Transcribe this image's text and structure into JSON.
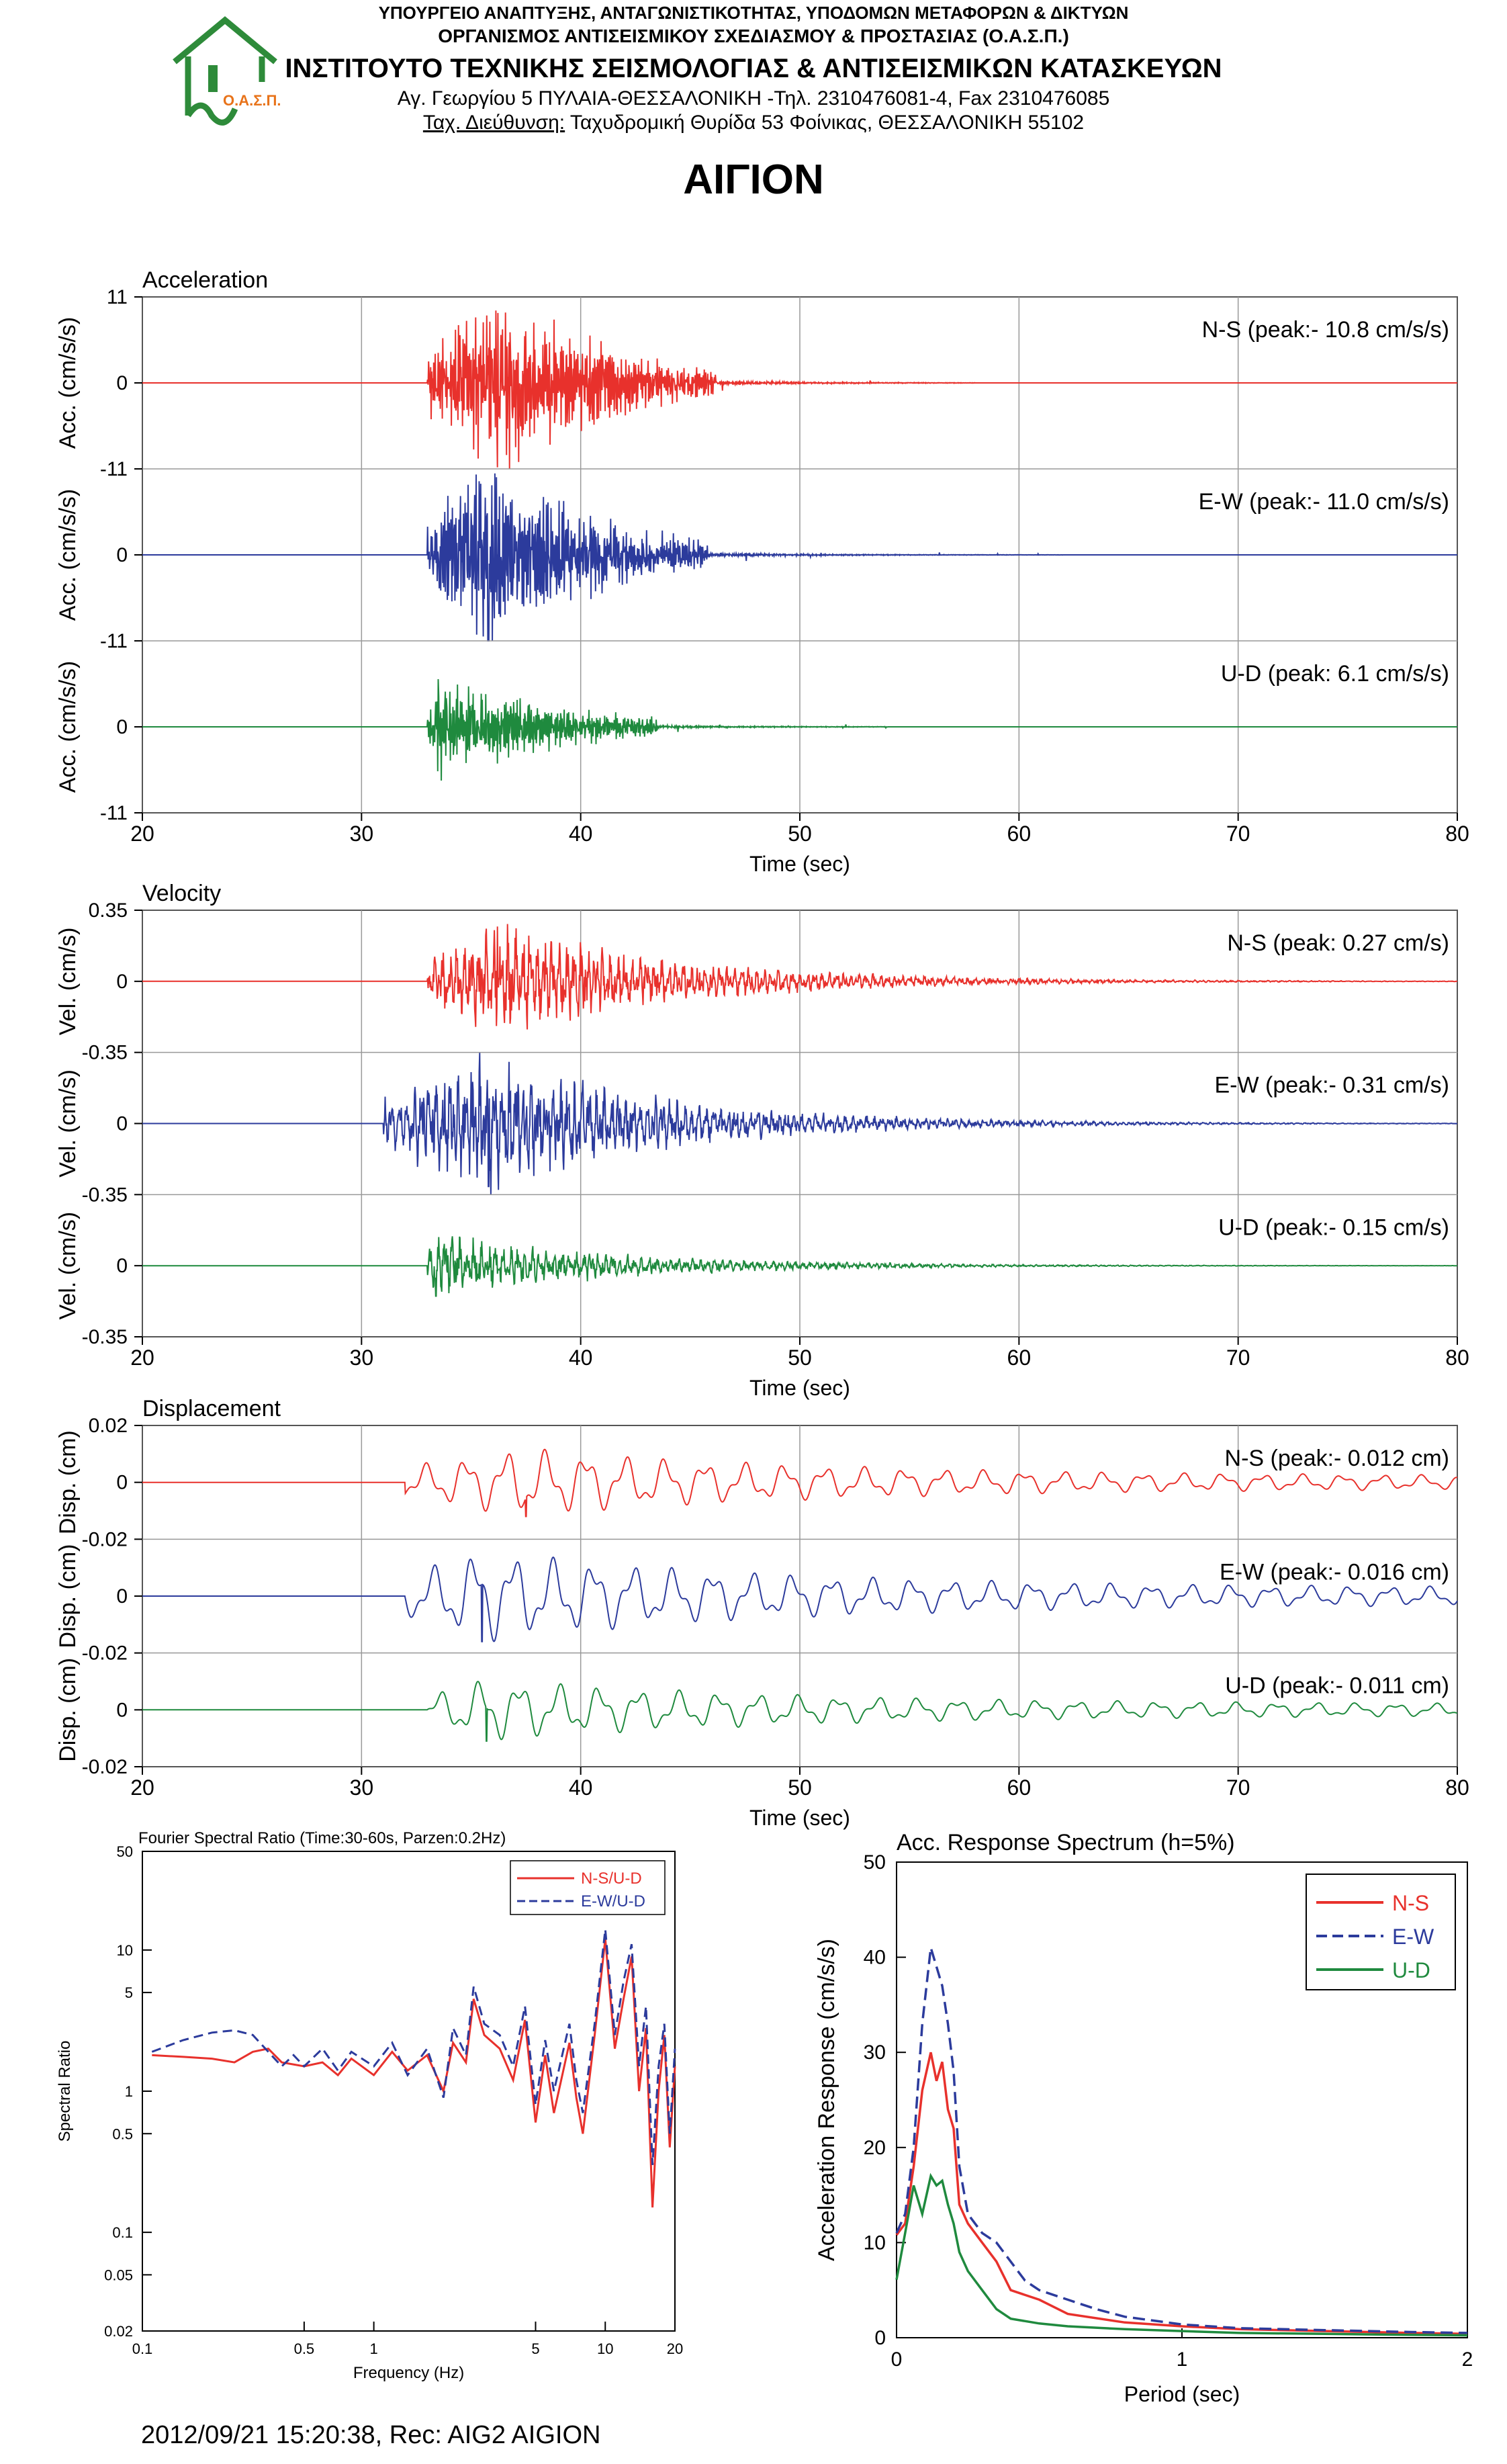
{
  "header": {
    "line1": "ΥΠΟΥΡΓΕΙΟ ΑΝΑΠΤΥΞΗΣ, ΑΝΤΑΓΩΝΙΣΤΙΚΟΤΗΤΑΣ, ΥΠΟΔΟΜΩΝ ΜΕΤΑΦΟΡΩΝ & ΔΙΚΤΥΩΝ",
    "line2": "ΟΡΓΑΝΙΣΜΟΣ ΑΝΤΙΣΕΙΣΜΙΚΟΥ ΣΧΕΔΙΑΣΜΟΥ & ΠΡΟΣΤΑΣΙΑΣ (Ο.Α.Σ.Π.)",
    "line3": "ΙΝΣΤΙΤΟΥΤΟ ΤΕΧΝΙΚΗΣ ΣΕΙΣΜΟΛΟΓΙΑΣ & ΑΝΤΙΣΕΙΣΜΙΚΩΝ ΚΑΤΑΣΚΕΥΩΝ",
    "line4": "Αγ. Γεωργίου 5 ΠΥΛΑΙΑ-ΘΕΣΣΑΛΟΝΙΚΗ -Τηλ. 2310476081-4,  Fax 2310476085",
    "line5_label": "Ταχ. Διεύθυνση:",
    "line5_rest": " Ταχυδρομική Θυρίδα 53 Φοίνικας, ΘΕΣΣΑΛΟΝΙΚΗ 55102",
    "logo_text": "Ο.Α.Σ.Π.",
    "logo_color": "#2e8b3a",
    "logo_text_color": "#e8731a"
  },
  "station_title": "ΑΙΓΙΟΝ",
  "footer": "2012/09/21 15:20:38, Rec: AIG2 AIGION",
  "colors": {
    "ns": "#e8312c",
    "ew": "#2c3b9c",
    "ud": "#1f8a3e"
  },
  "chart_data": [
    {
      "type": "line",
      "title": "Acceleration",
      "xlabel": "Time (sec)",
      "ylabel": "Acc. (cm/s/s)",
      "xlim": [
        20,
        80
      ],
      "x_ticks": [
        "20",
        "30",
        "40",
        "50",
        "60",
        "70",
        "80"
      ],
      "ylim": [
        -11,
        11
      ],
      "y_ticks": [
        "11",
        "0",
        "-11"
      ],
      "series": [
        {
          "name": "N-S",
          "label": "N-S (peak:- 10.8 cm/s/s)",
          "peak": -10.8,
          "onset": 33,
          "peak_time": 36.2,
          "decay": 5.5,
          "end": 58
        },
        {
          "name": "E-W",
          "label": "E-W (peak:- 11.0 cm/s/s)",
          "peak": -11.0,
          "onset": 33,
          "peak_time": 35.8,
          "decay": 5.5,
          "end": 62
        },
        {
          "name": "U-D",
          "label": "U-D (peak: 6.1 cm/s/s)",
          "peak": 6.1,
          "onset": 33,
          "peak_time": 33.5,
          "decay": 6,
          "end": 54
        }
      ]
    },
    {
      "type": "line",
      "title": "Velocity",
      "xlabel": "Time (sec)",
      "ylabel": "Vel. (cm/s)",
      "xlim": [
        20,
        80
      ],
      "x_ticks": [
        "20",
        "30",
        "40",
        "50",
        "60",
        "70",
        "80"
      ],
      "ylim": [
        -0.35,
        0.35
      ],
      "y_ticks": [
        "0.35",
        "0",
        "-0.35"
      ],
      "series": [
        {
          "name": "N-S",
          "label": "N-S (peak: 0.27 cm/s)",
          "peak": 0.27,
          "onset": 33,
          "peak_time": 36.2,
          "decay": 8,
          "end": 80
        },
        {
          "name": "E-W",
          "label": "E-W (peak:- 0.31 cm/s)",
          "peak": -0.31,
          "onset": 31,
          "peak_time": 35.8,
          "decay": 8,
          "end": 80
        },
        {
          "name": "U-D",
          "label": "U-D (peak:- 0.15 cm/s)",
          "peak": -0.15,
          "onset": 33,
          "peak_time": 33.4,
          "decay": 8,
          "end": 80
        }
      ]
    },
    {
      "type": "line",
      "title": "Displacement",
      "xlabel": "Time (sec)",
      "ylabel": "Disp. (cm)",
      "xlim": [
        20,
        80
      ],
      "x_ticks": [
        "20",
        "30",
        "40",
        "50",
        "60",
        "70",
        "80"
      ],
      "ylim": [
        -0.02,
        0.02
      ],
      "y_ticks": [
        "0.02",
        "0",
        "-0.02"
      ],
      "series": [
        {
          "name": "N-S",
          "label": "N-S (peak:- 0.012 cm)",
          "peak": -0.012,
          "onset": 32,
          "peak_time": 37.5,
          "decay": 14,
          "end": 80
        },
        {
          "name": "E-W",
          "label": "E-W (peak:- 0.016 cm)",
          "peak": -0.016,
          "onset": 32,
          "peak_time": 35.5,
          "decay": 14,
          "end": 80
        },
        {
          "name": "U-D",
          "label": "U-D (peak:- 0.011 cm)",
          "peak": -0.011,
          "onset": 33,
          "peak_time": 35.7,
          "decay": 14,
          "end": 80
        }
      ]
    },
    {
      "type": "line",
      "title": "Fourier Spectral Ratio (Time:30-60s, Parzen:0.2Hz)",
      "xlabel": "Frequency (Hz)",
      "ylabel": "Spectral Ratio",
      "x_scale": "log",
      "y_scale": "log",
      "xlim": [
        0.1,
        20
      ],
      "ylim": [
        0.02,
        50
      ],
      "x_ticks": [
        {
          "v": 0.1,
          "t": "0.1"
        },
        {
          "v": 0.5,
          "t": "0.5"
        },
        {
          "v": 1,
          "t": "1"
        },
        {
          "v": 5,
          "t": "5"
        },
        {
          "v": 10,
          "t": "10"
        },
        {
          "v": 20,
          "t": "20"
        }
      ],
      "y_ticks": [
        {
          "v": 50,
          "t": "50"
        },
        {
          "v": 10,
          "t": "10"
        },
        {
          "v": 5,
          "t": "5"
        },
        {
          "v": 1,
          "t": "1"
        },
        {
          "v": 0.5,
          "t": "0.5"
        },
        {
          "v": 0.1,
          "t": "0.1"
        },
        {
          "v": 0.05,
          "t": "0.05"
        },
        {
          "v": 0.02,
          "t": "0.02"
        }
      ],
      "legend": "top-right",
      "series": [
        {
          "name": "N-S/U-D",
          "points": [
            [
              0.11,
              1.8
            ],
            [
              0.15,
              1.75
            ],
            [
              0.2,
              1.7
            ],
            [
              0.25,
              1.6
            ],
            [
              0.3,
              1.9
            ],
            [
              0.35,
              2.0
            ],
            [
              0.4,
              1.6
            ],
            [
              0.5,
              1.5
            ],
            [
              0.6,
              1.6
            ],
            [
              0.7,
              1.3
            ],
            [
              0.8,
              1.7
            ],
            [
              1.0,
              1.3
            ],
            [
              1.2,
              1.9
            ],
            [
              1.4,
              1.4
            ],
            [
              1.7,
              1.8
            ],
            [
              2.0,
              1.0
            ],
            [
              2.2,
              2.2
            ],
            [
              2.5,
              1.6
            ],
            [
              2.7,
              4.5
            ],
            [
              3.0,
              2.5
            ],
            [
              3.5,
              2.0
            ],
            [
              4.0,
              1.2
            ],
            [
              4.5,
              3.2
            ],
            [
              5.0,
              0.6
            ],
            [
              5.5,
              1.8
            ],
            [
              6.0,
              0.7
            ],
            [
              7.0,
              2.2
            ],
            [
              7.5,
              0.9
            ],
            [
              8.0,
              0.5
            ],
            [
              9.0,
              2.5
            ],
            [
              10.0,
              12.0
            ],
            [
              11.0,
              2.0
            ],
            [
              12.0,
              4.5
            ],
            [
              13.0,
              9.0
            ],
            [
              14.0,
              1.0
            ],
            [
              15.0,
              2.8
            ],
            [
              16.0,
              0.15
            ],
            [
              17.0,
              1.0
            ],
            [
              18.0,
              2.5
            ],
            [
              19.0,
              0.4
            ],
            [
              20.0,
              1.5
            ]
          ]
        },
        {
          "name": "E-W/U-D",
          "points": [
            [
              0.11,
              1.9
            ],
            [
              0.15,
              2.3
            ],
            [
              0.2,
              2.6
            ],
            [
              0.25,
              2.7
            ],
            [
              0.3,
              2.5
            ],
            [
              0.35,
              1.9
            ],
            [
              0.4,
              1.5
            ],
            [
              0.45,
              1.8
            ],
            [
              0.5,
              1.5
            ],
            [
              0.6,
              2.0
            ],
            [
              0.7,
              1.4
            ],
            [
              0.8,
              1.9
            ],
            [
              1.0,
              1.5
            ],
            [
              1.2,
              2.2
            ],
            [
              1.4,
              1.3
            ],
            [
              1.7,
              2.0
            ],
            [
              2.0,
              0.9
            ],
            [
              2.2,
              2.8
            ],
            [
              2.5,
              1.8
            ],
            [
              2.7,
              5.5
            ],
            [
              3.0,
              3.0
            ],
            [
              3.5,
              2.5
            ],
            [
              4.0,
              1.5
            ],
            [
              4.5,
              4.0
            ],
            [
              5.0,
              0.8
            ],
            [
              5.5,
              2.3
            ],
            [
              6.0,
              1.0
            ],
            [
              7.0,
              3.0
            ],
            [
              7.5,
              1.2
            ],
            [
              8.0,
              0.7
            ],
            [
              9.0,
              3.0
            ],
            [
              10.0,
              14.0
            ],
            [
              11.0,
              2.5
            ],
            [
              12.0,
              6.0
            ],
            [
              13.0,
              11.0
            ],
            [
              14.0,
              1.5
            ],
            [
              15.0,
              4.0
            ],
            [
              16.0,
              0.3
            ],
            [
              17.0,
              1.5
            ],
            [
              18.0,
              3.0
            ],
            [
              19.0,
              0.5
            ],
            [
              20.0,
              2.0
            ]
          ]
        }
      ]
    },
    {
      "type": "line",
      "title": "Acc. Response Spectrum (h=5%)",
      "xlabel": "Period (sec)",
      "ylabel": "Acceleration Response (cm/s/s)",
      "xlim": [
        0,
        2
      ],
      "ylim": [
        0,
        50
      ],
      "x_ticks": [
        {
          "v": 0,
          "t": "0"
        },
        {
          "v": 1,
          "t": "1"
        },
        {
          "v": 2,
          "t": "2"
        }
      ],
      "y_ticks": [
        {
          "v": 0,
          "t": "0"
        },
        {
          "v": 10,
          "t": "10"
        },
        {
          "v": 20,
          "t": "20"
        },
        {
          "v": 30,
          "t": "30"
        },
        {
          "v": 40,
          "t": "40"
        },
        {
          "v": 50,
          "t": "50"
        }
      ],
      "legend": "top-right",
      "series": [
        {
          "name": "N-S",
          "points": [
            [
              0,
              10.8
            ],
            [
              0.03,
              12
            ],
            [
              0.06,
              18
            ],
            [
              0.09,
              26
            ],
            [
              0.12,
              30
            ],
            [
              0.14,
              27
            ],
            [
              0.16,
              29
            ],
            [
              0.18,
              24
            ],
            [
              0.2,
              22
            ],
            [
              0.22,
              14
            ],
            [
              0.25,
              12
            ],
            [
              0.3,
              10
            ],
            [
              0.35,
              8
            ],
            [
              0.4,
              5
            ],
            [
              0.5,
              4
            ],
            [
              0.6,
              2.5
            ],
            [
              0.8,
              1.6
            ],
            [
              1.0,
              1.2
            ],
            [
              1.2,
              0.9
            ],
            [
              1.5,
              0.7
            ],
            [
              1.8,
              0.5
            ],
            [
              2.0,
              0.4
            ]
          ]
        },
        {
          "name": "E-W",
          "points": [
            [
              0,
              11
            ],
            [
              0.03,
              13
            ],
            [
              0.06,
              20
            ],
            [
              0.09,
              33
            ],
            [
              0.12,
              41
            ],
            [
              0.14,
              39
            ],
            [
              0.16,
              37
            ],
            [
              0.18,
              33
            ],
            [
              0.2,
              28
            ],
            [
              0.22,
              18
            ],
            [
              0.25,
              13
            ],
            [
              0.3,
              11
            ],
            [
              0.35,
              10
            ],
            [
              0.4,
              8
            ],
            [
              0.45,
              6
            ],
            [
              0.5,
              5
            ],
            [
              0.6,
              4
            ],
            [
              0.7,
              3
            ],
            [
              0.8,
              2.2
            ],
            [
              1.0,
              1.4
            ],
            [
              1.2,
              1.0
            ],
            [
              1.5,
              0.8
            ],
            [
              1.8,
              0.6
            ],
            [
              2.0,
              0.5
            ]
          ]
        },
        {
          "name": "U-D",
          "points": [
            [
              0,
              6.1
            ],
            [
              0.03,
              11
            ],
            [
              0.06,
              16
            ],
            [
              0.09,
              13
            ],
            [
              0.12,
              17
            ],
            [
              0.14,
              16
            ],
            [
              0.16,
              16.5
            ],
            [
              0.18,
              14
            ],
            [
              0.2,
              12
            ],
            [
              0.22,
              9
            ],
            [
              0.25,
              7
            ],
            [
              0.3,
              5
            ],
            [
              0.35,
              3
            ],
            [
              0.4,
              2
            ],
            [
              0.5,
              1.5
            ],
            [
              0.6,
              1.2
            ],
            [
              0.8,
              0.9
            ],
            [
              1.0,
              0.7
            ],
            [
              1.2,
              0.5
            ],
            [
              1.5,
              0.4
            ],
            [
              1.8,
              0.3
            ],
            [
              2.0,
              0.25
            ]
          ]
        }
      ]
    }
  ]
}
